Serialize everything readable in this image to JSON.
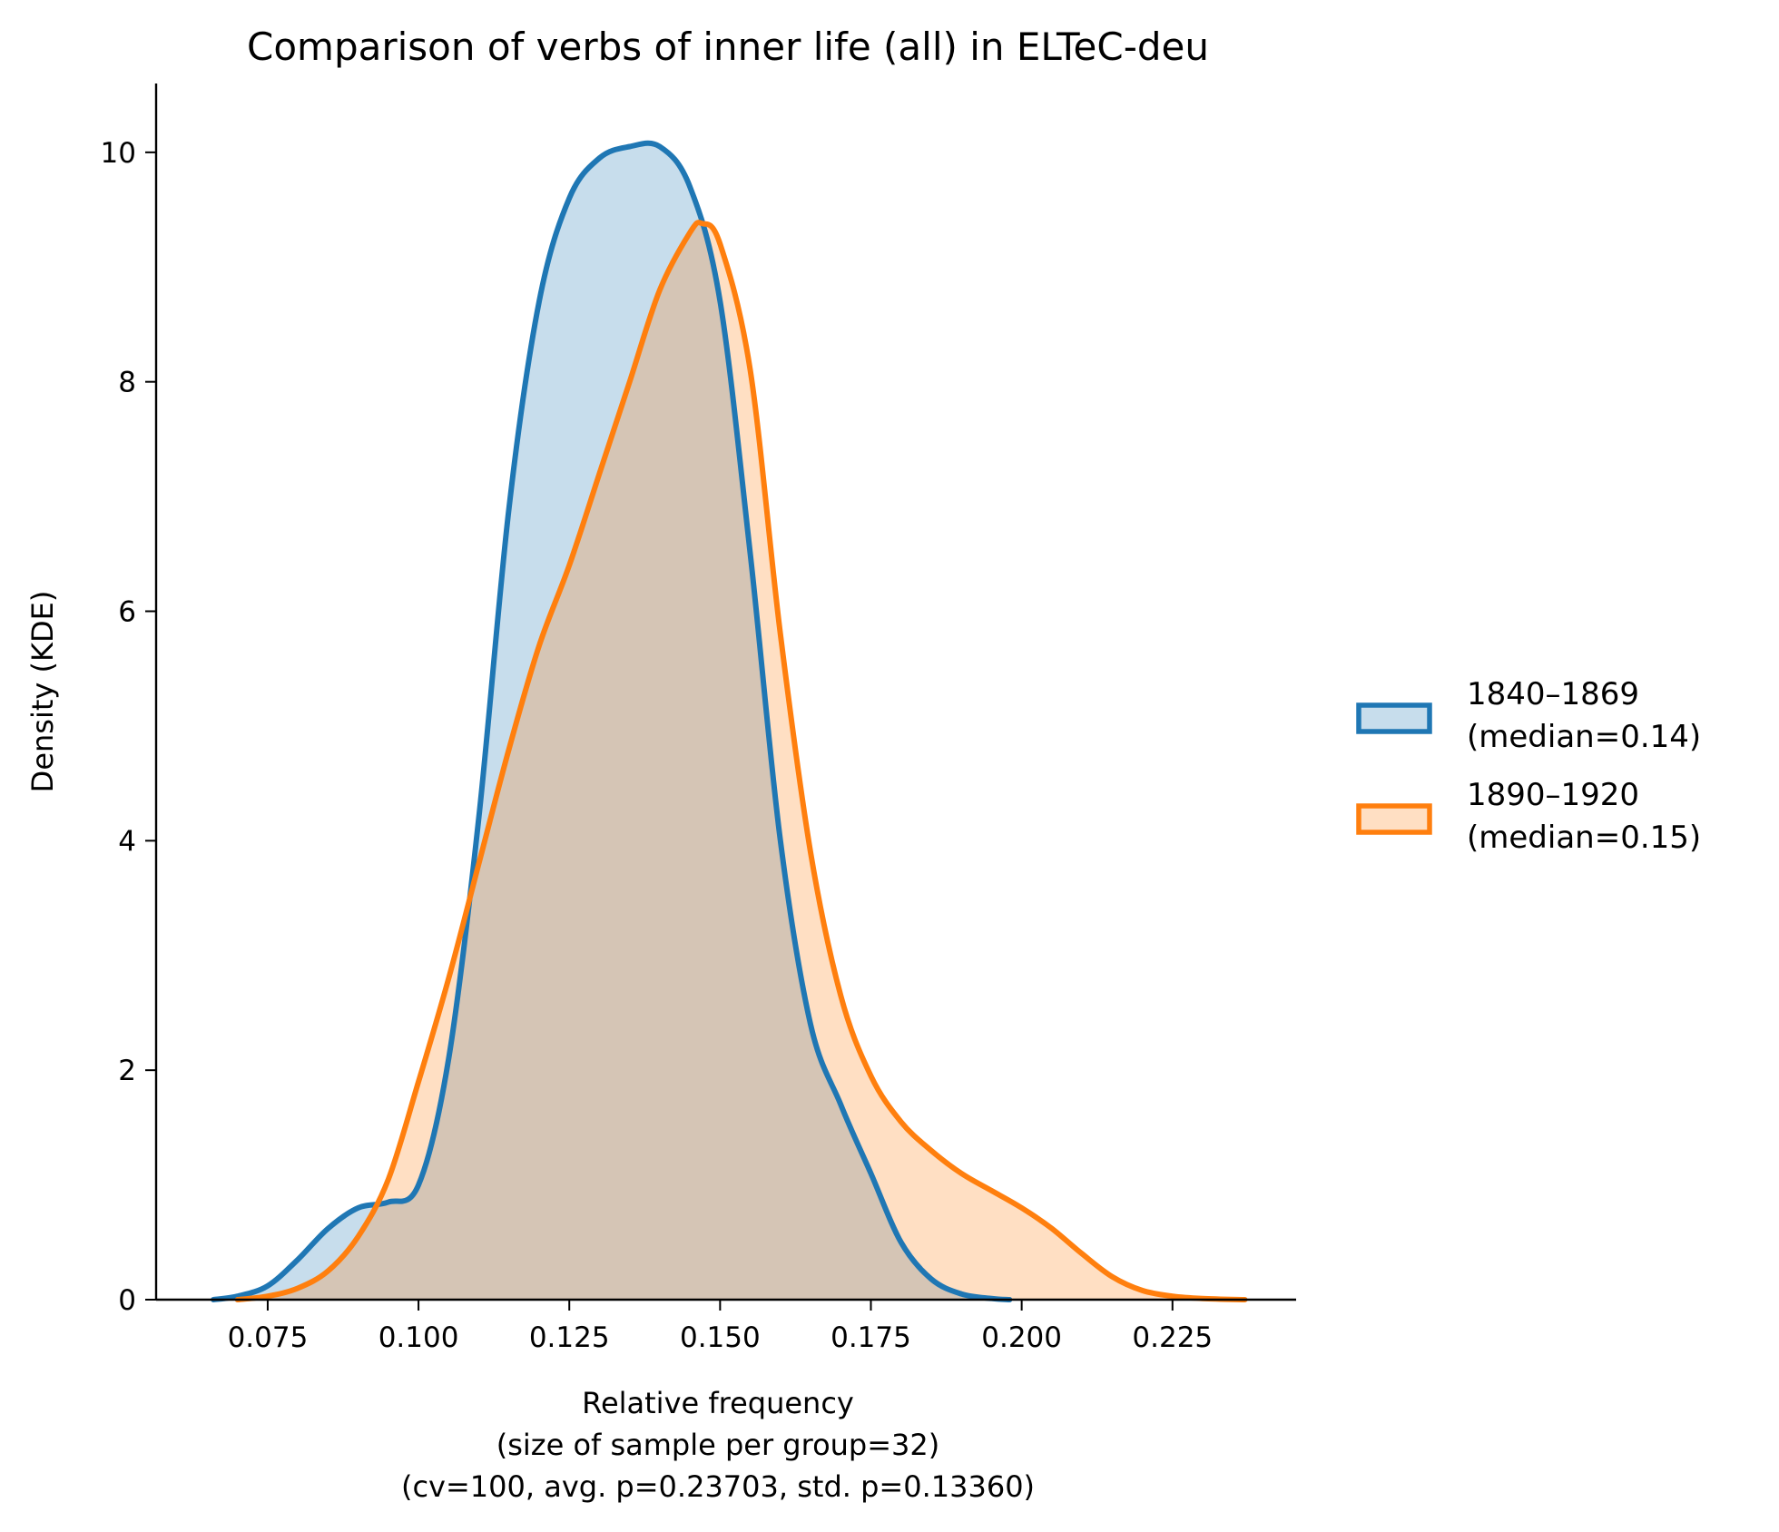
{
  "chart_data": {
    "type": "area",
    "title": "Comparison of verbs of inner life (all) in ELTeC-deu",
    "xlabel_lines": [
      "Relative frequency",
      "(size of sample per group=32)",
      "(cv=100, avg. p=0.23703, std. p=0.13360)"
    ],
    "ylabel": "Density (KDE)",
    "xlim": [
      0.0565,
      0.2455
    ],
    "ylim": [
      0,
      10.6
    ],
    "xticks": [
      0.075,
      0.1,
      0.125,
      0.15,
      0.175,
      0.2,
      0.225
    ],
    "xtick_labels": [
      "0.075",
      "0.100",
      "0.125",
      "0.150",
      "0.175",
      "0.200",
      "0.225"
    ],
    "yticks": [
      0,
      2,
      4,
      6,
      8,
      10
    ],
    "ytick_labels": [
      "0",
      "2",
      "4",
      "6",
      "8",
      "10"
    ],
    "grid": false,
    "legend_position": "right",
    "series": [
      {
        "name": "1840–1869",
        "legend_line2": "(median=0.14)",
        "color": "#1f77b4",
        "fill": "rgba(31,119,180,0.25)",
        "x": [
          0.066,
          0.07,
          0.075,
          0.08,
          0.085,
          0.09,
          0.095,
          0.1,
          0.105,
          0.11,
          0.115,
          0.12,
          0.125,
          0.13,
          0.135,
          0.14,
          0.145,
          0.15,
          0.155,
          0.16,
          0.165,
          0.17,
          0.175,
          0.18,
          0.185,
          0.19,
          0.195,
          0.198
        ],
        "y": [
          0.0,
          0.03,
          0.12,
          0.35,
          0.62,
          0.8,
          0.85,
          1.0,
          2.1,
          4.2,
          6.9,
          8.7,
          9.6,
          9.95,
          10.05,
          10.05,
          9.7,
          8.7,
          6.5,
          4.0,
          2.4,
          1.7,
          1.1,
          0.5,
          0.18,
          0.05,
          0.01,
          0.0
        ]
      },
      {
        "name": "1890–1920",
        "legend_line2": "(median=0.15)",
        "color": "#ff7f0e",
        "fill": "rgba(255,127,14,0.25)",
        "x": [
          0.07,
          0.075,
          0.08,
          0.085,
          0.09,
          0.095,
          0.1,
          0.105,
          0.11,
          0.115,
          0.12,
          0.125,
          0.13,
          0.135,
          0.14,
          0.145,
          0.147,
          0.15,
          0.155,
          0.16,
          0.165,
          0.17,
          0.175,
          0.18,
          0.185,
          0.19,
          0.195,
          0.2,
          0.205,
          0.21,
          0.215,
          0.22,
          0.225,
          0.23,
          0.237
        ],
        "y": [
          0.0,
          0.03,
          0.1,
          0.25,
          0.55,
          1.05,
          1.9,
          2.8,
          3.8,
          4.8,
          5.7,
          6.4,
          7.2,
          8.0,
          8.8,
          9.3,
          9.38,
          9.2,
          8.1,
          5.8,
          3.9,
          2.65,
          1.95,
          1.55,
          1.3,
          1.1,
          0.95,
          0.8,
          0.62,
          0.4,
          0.2,
          0.08,
          0.03,
          0.01,
          0.0
        ]
      }
    ]
  }
}
